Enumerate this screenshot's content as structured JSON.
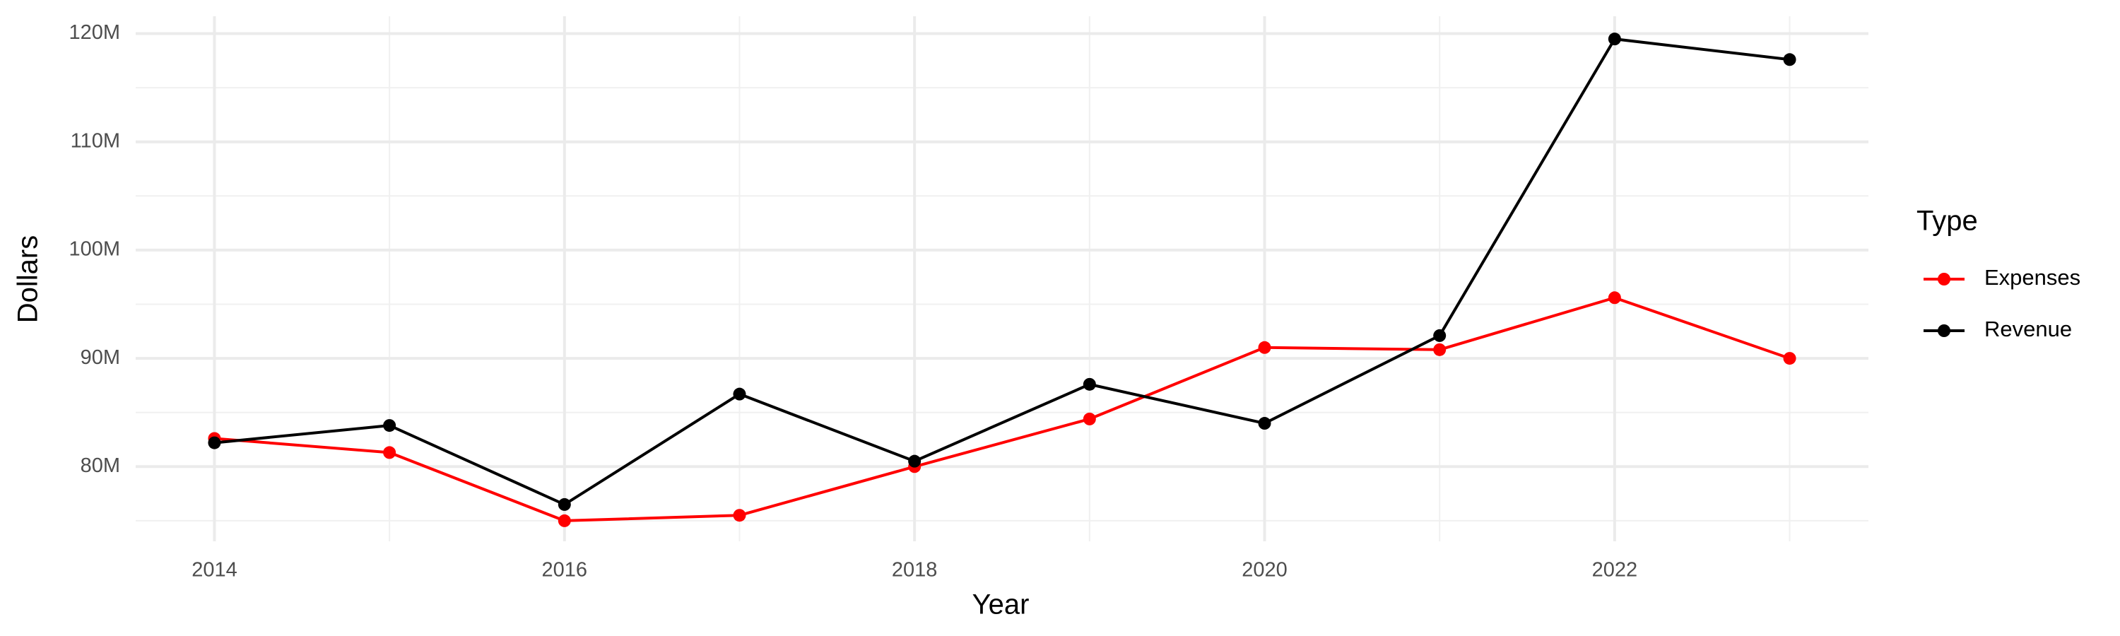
{
  "chart_data": {
    "type": "line",
    "x_label": "Year",
    "y_label": "Dollars",
    "x": [
      2014,
      2015,
      2016,
      2017,
      2018,
      2019,
      2020,
      2021,
      2022,
      2023
    ],
    "series": [
      {
        "name": "Expenses",
        "color": "#ff0000",
        "values": [
          82600000,
          81300000,
          75000000,
          75500000,
          80000000,
          84400000,
          91000000,
          90800000,
          95600000,
          90000000
        ]
      },
      {
        "name": "Revenue",
        "color": "#000000",
        "values": [
          82200000,
          83800000,
          76500000,
          86700000,
          80500000,
          87600000,
          84000000,
          92100000,
          119500000,
          117600000
        ]
      }
    ],
    "xlim": [
      2013.55,
      2023.45
    ],
    "xticks": [
      2014,
      2016,
      2018,
      2020,
      2022
    ],
    "xticks_minor": [
      2015,
      2017,
      2019,
      2021,
      2023
    ],
    "ylim": [
      73100000,
      121600000
    ],
    "yticks": [
      {
        "value": 80000000,
        "label": "80M"
      },
      {
        "value": 90000000,
        "label": "90M"
      },
      {
        "value": 100000000,
        "label": "100M"
      },
      {
        "value": 110000000,
        "label": "110M"
      },
      {
        "value": 120000000,
        "label": "120M"
      }
    ],
    "yticks_minor": [
      75000000,
      85000000,
      95000000,
      105000000,
      115000000
    ],
    "grid": true,
    "legend_title": "Type",
    "legend_position": "right"
  }
}
